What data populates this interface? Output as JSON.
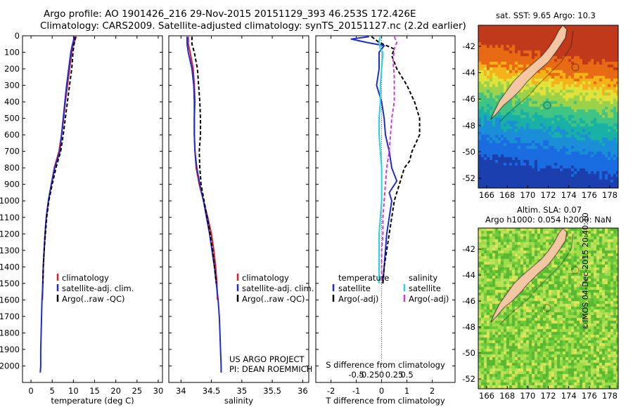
{
  "header": {
    "line1": "Argo profile: AO 1901426_216 29-Nov-2015 20151129_393 46.253S 172.426E",
    "line2": "Climatology: CARS2009. Satellite-adjusted climatology: synTS_20151127.nc (2.2d earlier)"
  },
  "colors": {
    "climatology": "#e41a1c",
    "satellite": "#1f2bd8",
    "argo": "#000000",
    "sal_satellite": "#22d3e6",
    "sal_argo": "#d63ad6",
    "land": "#f4c7a4"
  },
  "chart_data": [
    {
      "type": "line",
      "id": "temperature",
      "xlabel": "temperature (deg C)",
      "xticks": [
        0,
        5,
        10,
        15,
        20,
        25,
        30
      ],
      "xlim": [
        -2,
        31
      ],
      "ylim": [
        0,
        2100
      ],
      "yticks": [
        0,
        100,
        200,
        300,
        400,
        500,
        600,
        700,
        800,
        900,
        1000,
        1100,
        1200,
        1300,
        1400,
        1500,
        1600,
        1700,
        1800,
        1900,
        2000
      ],
      "legend": [
        "climatology",
        "satellite-adj. clim.",
        "Argo(..raw -QC)"
      ],
      "series": [
        {
          "name": "climatology",
          "color": "#e41a1c",
          "dash": "",
          "points": [
            [
              10.7,
              5
            ],
            [
              10.3,
              30
            ],
            [
              9.9,
              60
            ],
            [
              9.6,
              100
            ],
            [
              9.1,
              200
            ],
            [
              8.6,
              300
            ],
            [
              8.1,
              400
            ],
            [
              7.7,
              500
            ],
            [
              7.2,
              600
            ],
            [
              6.6,
              700
            ],
            [
              5.5,
              800
            ],
            [
              4.8,
              900
            ],
            [
              4.1,
              1000
            ],
            [
              3.6,
              1100
            ],
            [
              3.3,
              1200
            ],
            [
              3.1,
              1300
            ],
            [
              2.9,
              1400
            ],
            [
              2.8,
              1500
            ],
            [
              2.7,
              1600
            ]
          ]
        },
        {
          "name": "satellite-adj. clim.",
          "color": "#1f2bd8",
          "dash": "",
          "points": [
            [
              10.2,
              5
            ],
            [
              10.0,
              30
            ],
            [
              9.7,
              60
            ],
            [
              9.4,
              100
            ],
            [
              8.9,
              200
            ],
            [
              8.4,
              300
            ],
            [
              8.0,
              400
            ],
            [
              7.6,
              500
            ],
            [
              7.2,
              600
            ],
            [
              6.8,
              700
            ],
            [
              5.6,
              800
            ],
            [
              4.8,
              900
            ],
            [
              4.1,
              1000
            ],
            [
              3.6,
              1100
            ],
            [
              3.3,
              1200
            ],
            [
              3.1,
              1300
            ],
            [
              2.9,
              1400
            ],
            [
              2.8,
              1500
            ],
            [
              2.6,
              1600
            ],
            [
              2.5,
              1700
            ],
            [
              2.4,
              1800
            ],
            [
              2.3,
              1900
            ],
            [
              2.3,
              2000
            ],
            [
              2.2,
              2040
            ]
          ]
        },
        {
          "name": "Argo(..raw -QC)",
          "color": "#000000",
          "dash": "5,3",
          "points": [
            [
              10.4,
              5
            ],
            [
              10.3,
              30
            ],
            [
              10.1,
              60
            ],
            [
              9.9,
              100
            ],
            [
              9.6,
              200
            ],
            [
              9.1,
              300
            ],
            [
              8.6,
              400
            ],
            [
              8.1,
              500
            ],
            [
              7.6,
              600
            ],
            [
              7.0,
              700
            ],
            [
              5.9,
              800
            ],
            [
              5.0,
              900
            ],
            [
              4.2,
              1000
            ],
            [
              3.7,
              1100
            ],
            [
              3.4,
              1200
            ],
            [
              3.1,
              1300
            ],
            [
              2.9,
              1400
            ],
            [
              2.8,
              1500
            ]
          ]
        }
      ]
    },
    {
      "type": "line",
      "id": "salinity",
      "xlabel": "salinity",
      "xticks": [
        34,
        34.5,
        35,
        35.5,
        36
      ],
      "xlim": [
        33.8,
        36.1
      ],
      "ylim": [
        0,
        2100
      ],
      "legend": [
        "climatology",
        "satellite-adj. clim.",
        "Argo(..raw -QC)"
      ],
      "annotation": [
        "US ARGO PROJECT",
        "PI: DEAN ROEMMICH"
      ],
      "series": [
        {
          "name": "climatology",
          "color": "#e41a1c",
          "dash": "",
          "points": [
            [
              34.12,
              5
            ],
            [
              34.12,
              50
            ],
            [
              34.15,
              100
            ],
            [
              34.2,
              200
            ],
            [
              34.22,
              300
            ],
            [
              34.23,
              400
            ],
            [
              34.22,
              500
            ],
            [
              34.22,
              600
            ],
            [
              34.23,
              700
            ],
            [
              34.25,
              800
            ],
            [
              34.3,
              900
            ],
            [
              34.37,
              1000
            ],
            [
              34.44,
              1100
            ],
            [
              34.5,
              1200
            ],
            [
              34.54,
              1300
            ],
            [
              34.57,
              1400
            ],
            [
              34.59,
              1500
            ],
            [
              34.6,
              1600
            ]
          ]
        },
        {
          "name": "satellite-adj. clim.",
          "color": "#1f2bd8",
          "dash": "",
          "points": [
            [
              34.1,
              5
            ],
            [
              34.1,
              50
            ],
            [
              34.12,
              100
            ],
            [
              34.18,
              200
            ],
            [
              34.21,
              300
            ],
            [
              34.22,
              400
            ],
            [
              34.22,
              500
            ],
            [
              34.22,
              600
            ],
            [
              34.23,
              700
            ],
            [
              34.26,
              800
            ],
            [
              34.31,
              900
            ],
            [
              34.37,
              1000
            ],
            [
              34.42,
              1100
            ],
            [
              34.47,
              1200
            ],
            [
              34.51,
              1300
            ],
            [
              34.55,
              1400
            ],
            [
              34.58,
              1500
            ],
            [
              34.61,
              1600
            ],
            [
              34.63,
              1700
            ],
            [
              34.64,
              1800
            ],
            [
              34.65,
              1900
            ],
            [
              34.66,
              2000
            ],
            [
              34.66,
              2040
            ]
          ]
        },
        {
          "name": "Argo(..raw -QC)",
          "color": "#000000",
          "dash": "5,3",
          "points": [
            [
              34.18,
              5
            ],
            [
              34.18,
              50
            ],
            [
              34.22,
              100
            ],
            [
              34.27,
              200
            ],
            [
              34.29,
              300
            ],
            [
              34.31,
              400
            ],
            [
              34.32,
              500
            ],
            [
              34.32,
              600
            ],
            [
              34.3,
              700
            ],
            [
              34.31,
              800
            ],
            [
              34.33,
              900
            ],
            [
              34.38,
              1000
            ],
            [
              34.43,
              1100
            ],
            [
              34.48,
              1200
            ],
            [
              34.52,
              1300
            ],
            [
              34.55,
              1400
            ],
            [
              34.58,
              1500
            ]
          ]
        }
      ]
    },
    {
      "type": "line",
      "id": "difference",
      "xlabel": "T difference from climatology",
      "xlabel_top": "S difference from climatology",
      "xticks": [
        -2,
        -1,
        0,
        1,
        2
      ],
      "xticks_top": [
        -0.5,
        -0.25,
        0,
        0.25,
        0.5
      ],
      "xticklabels_top": [
        "-0.5",
        "-0.25",
        "0",
        "0.25",
        "0.5"
      ],
      "xlim": [
        -2.6,
        2.9
      ],
      "ylim": [
        0,
        2100
      ],
      "legend_temperature": [
        "temperature",
        "satellite",
        "Argo(-adj)"
      ],
      "legend_salinity": [
        "salinity",
        "satellite",
        "Argo(-adj)"
      ],
      "series": [
        {
          "name": "T satellite",
          "color": "#1f2bd8",
          "dash": "",
          "points": [
            [
              -0.5,
              5
            ],
            [
              -1.2,
              20
            ],
            [
              -0.6,
              40
            ],
            [
              0.1,
              60
            ],
            [
              -0.1,
              100
            ],
            [
              -0.1,
              200
            ],
            [
              -0.2,
              300
            ],
            [
              0.0,
              400
            ],
            [
              0.1,
              500
            ],
            [
              0.15,
              600
            ],
            [
              0.3,
              700
            ],
            [
              0.4,
              800
            ],
            [
              0.6,
              880
            ],
            [
              0.3,
              950
            ],
            [
              0.4,
              1000
            ],
            [
              0.3,
              1100
            ],
            [
              0.2,
              1200
            ],
            [
              0.15,
              1300
            ],
            [
              0.1,
              1400
            ],
            [
              0.05,
              1500
            ]
          ]
        },
        {
          "name": "T Argo(-adj)",
          "color": "#000000",
          "dash": "5,3",
          "points": [
            [
              -0.4,
              5
            ],
            [
              -0.1,
              40
            ],
            [
              0.5,
              80
            ],
            [
              0.4,
              120
            ],
            [
              0.6,
              200
            ],
            [
              1.0,
              300
            ],
            [
              1.3,
              400
            ],
            [
              1.5,
              500
            ],
            [
              1.5,
              600
            ],
            [
              1.2,
              700
            ],
            [
              1.1,
              760
            ],
            [
              0.9,
              800
            ],
            [
              0.7,
              900
            ],
            [
              0.5,
              1000
            ],
            [
              0.4,
              1100
            ],
            [
              0.3,
              1200
            ],
            [
              0.2,
              1300
            ],
            [
              0.1,
              1400
            ],
            [
              0.05,
              1500
            ]
          ]
        },
        {
          "name": "S satellite",
          "color": "#22d3e6",
          "dash": "",
          "points": [
            [
              -0.05,
              5
            ],
            [
              -0.1,
              40
            ],
            [
              -0.05,
              80
            ],
            [
              0.05,
              100
            ],
            [
              0.0,
              200
            ],
            [
              -0.05,
              300
            ],
            [
              -0.05,
              400
            ],
            [
              -0.1,
              500
            ],
            [
              -0.1,
              600
            ],
            [
              -0.05,
              700
            ],
            [
              0.0,
              800
            ],
            [
              0.0,
              900
            ],
            [
              0.0,
              1000
            ],
            [
              -0.05,
              1100
            ],
            [
              -0.1,
              1200
            ],
            [
              -0.1,
              1300
            ],
            [
              -0.1,
              1400
            ],
            [
              -0.1,
              1500
            ]
          ]
        },
        {
          "name": "S Argo(-adj)",
          "color": "#d63ad6",
          "dash": "5,3",
          "points": [
            [
              0.5,
              5
            ],
            [
              0.6,
              40
            ],
            [
              0.5,
              80
            ],
            [
              0.45,
              150
            ],
            [
              0.5,
              250
            ],
            [
              0.5,
              400
            ],
            [
              0.4,
              500
            ],
            [
              0.35,
              600
            ],
            [
              0.3,
              700
            ],
            [
              0.2,
              800
            ],
            [
              0.15,
              900
            ],
            [
              0.1,
              1000
            ],
            [
              0.05,
              1100
            ],
            [
              0.05,
              1200
            ],
            [
              0.0,
              1300
            ],
            [
              0.0,
              1400
            ],
            [
              0.0,
              1500
            ]
          ]
        }
      ]
    }
  ],
  "maps": [
    {
      "title": "sat. SST: 9.65 Argo: 10.3",
      "lat_ticks": [
        "-42",
        "-44",
        "-46",
        "-48",
        "-50",
        "-52"
      ],
      "lon_ticks": [
        "166",
        "168",
        "170",
        "172",
        "174",
        "176",
        "178"
      ]
    },
    {
      "title1": "Altim. SLA: 0.07",
      "title2": "Argo h1000: 0.054 h2000: NaN",
      "lat_ticks": [
        "-42",
        "-44",
        "-46",
        "-48",
        "-50",
        "-52"
      ],
      "lon_ticks": [
        "166",
        "168",
        "170",
        "172",
        "174",
        "176",
        "178"
      ]
    }
  ],
  "credit": "©IMOS 04-Dec-2015 20:40:10"
}
